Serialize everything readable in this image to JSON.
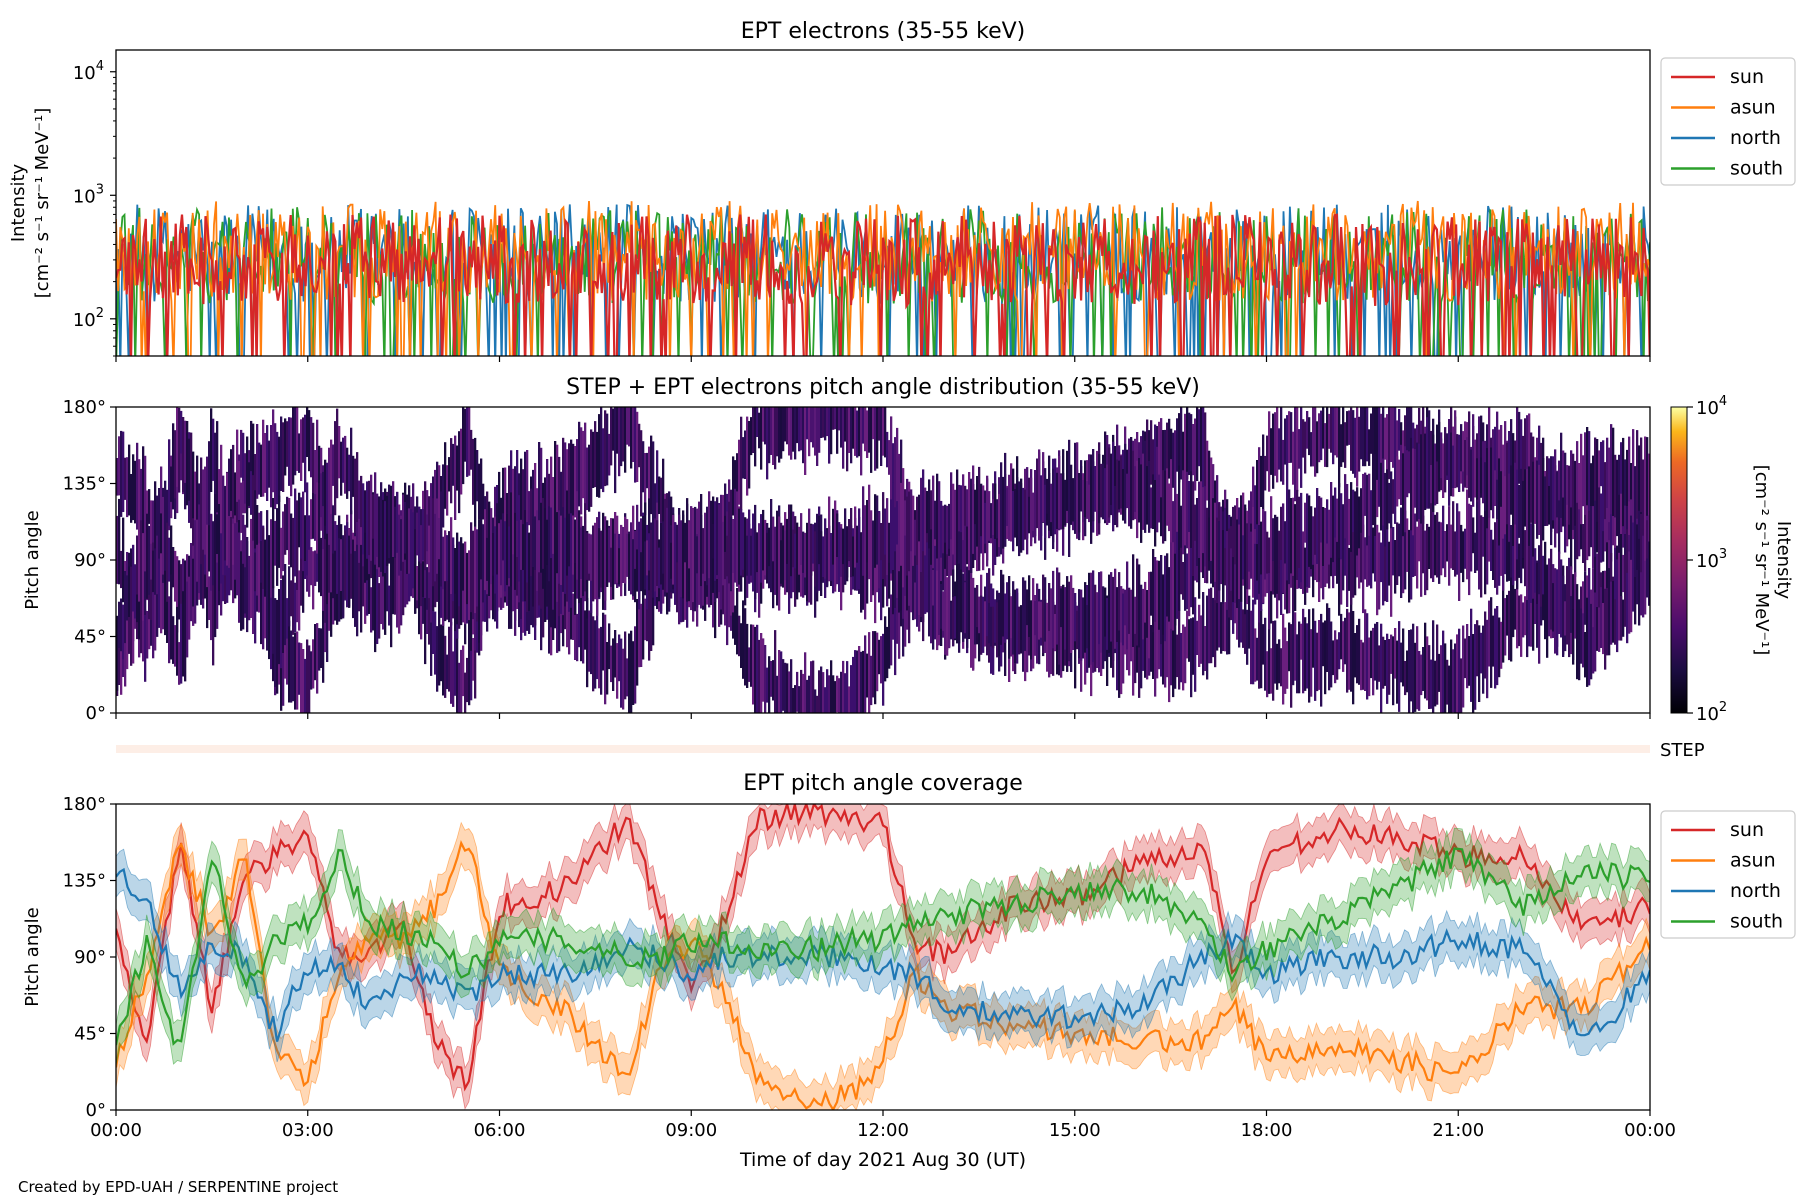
{
  "credit": "Created by EPD-UAH / SERPENTINE project",
  "xaxis": {
    "label": "Time of day 2021 Aug 30 (UT)",
    "ticks": [
      "00:00",
      "03:00",
      "06:00",
      "09:00",
      "12:00",
      "15:00",
      "18:00",
      "21:00",
      "00:00"
    ],
    "range_hours": [
      0,
      24
    ]
  },
  "colors": {
    "sun": "#d62728",
    "asun": "#ff7f0e",
    "north": "#1f77b4",
    "south": "#2ca02c",
    "step": "#fdeee6"
  },
  "chart_data": [
    {
      "type": "line",
      "title": "EPT electrons (35-55 keV)",
      "ylabel_line1": "Intensity",
      "ylabel_line2": "[cm⁻² s⁻¹ sr⁻¹ MeV⁻¹]",
      "yscale": "log",
      "ylim": [
        50,
        15000
      ],
      "yticks": [
        {
          "base": "10",
          "exp": "2",
          "value": 100
        },
        {
          "base": "10",
          "exp": "3",
          "value": 1000
        },
        {
          "base": "10",
          "exp": "4",
          "value": 10000
        }
      ],
      "legend": {
        "placement": "outside-right",
        "entries": [
          "sun",
          "asun",
          "north",
          "south"
        ]
      },
      "series": [
        {
          "name": "sun",
          "typical_range": [
            50,
            700
          ]
        },
        {
          "name": "asun",
          "typical_range": [
            50,
            900
          ]
        },
        {
          "name": "north",
          "typical_range": [
            50,
            850
          ]
        },
        {
          "name": "south",
          "typical_range": [
            50,
            800
          ]
        }
      ]
    },
    {
      "type": "heatmap",
      "title": "STEP + EPT electrons pitch angle distribution (35-55 keV)",
      "ylabel": "Pitch angle",
      "ylim": [
        0,
        180
      ],
      "yticks": [
        "0°",
        "45°",
        "90°",
        "135°",
        "180°"
      ],
      "colorbar": {
        "label_line1": "Intensity",
        "label_line2": "[cm⁻² s⁻¹ sr⁻¹ MeV⁻¹]",
        "scale": "log",
        "range": [
          100,
          10000
        ],
        "ticks": [
          {
            "base": "10",
            "exp": "2"
          },
          {
            "base": "10",
            "exp": "3"
          },
          {
            "base": "10",
            "exp": "4"
          }
        ]
      },
      "step_strip_label": "STEP"
    },
    {
      "type": "line",
      "title": "EPT pitch angle coverage",
      "ylabel": "Pitch angle",
      "ylim": [
        0,
        180
      ],
      "yticks": [
        "0°",
        "45°",
        "90°",
        "135°",
        "180°"
      ],
      "legend": {
        "placement": "outside-right",
        "entries": [
          "sun",
          "asun",
          "north",
          "south"
        ]
      },
      "series": [
        {
          "name": "sun",
          "x": [
            0,
            0.5,
            1,
            1.5,
            2,
            2.5,
            3,
            3.5,
            4,
            4.5,
            5,
            5.5,
            6,
            7,
            8,
            8.5,
            9,
            9.5,
            10,
            10.5,
            11,
            11.5,
            12,
            12.5,
            13,
            14,
            15,
            16,
            17,
            17.5,
            18,
            19,
            20,
            21,
            22,
            23,
            24
          ],
          "values": [
            100,
            40,
            160,
            60,
            135,
            150,
            160,
            90,
            95,
            110,
            40,
            15,
            120,
            130,
            170,
            120,
            70,
            110,
            170,
            175,
            175,
            170,
            170,
            100,
            90,
            120,
            125,
            145,
            155,
            80,
            150,
            165,
            160,
            150,
            150,
            105,
            120
          ]
        },
        {
          "name": "asun",
          "x": [
            0,
            0.5,
            1,
            1.5,
            2,
            2.5,
            3,
            3.5,
            4,
            4.5,
            5,
            5.5,
            6,
            7,
            8,
            8.5,
            9,
            9.5,
            10,
            10.5,
            11,
            11.5,
            12,
            12.5,
            13,
            14,
            15,
            16,
            17,
            17.5,
            18,
            19,
            20,
            21,
            22,
            23,
            24
          ],
          "values": [
            30,
            80,
            160,
            100,
            150,
            30,
            20,
            80,
            100,
            100,
            120,
            160,
            80,
            60,
            20,
            80,
            100,
            70,
            20,
            10,
            5,
            10,
            30,
            80,
            60,
            50,
            45,
            40,
            40,
            60,
            30,
            40,
            30,
            20,
            60,
            60,
            100
          ]
        },
        {
          "name": "north",
          "x": [
            0,
            0.5,
            1,
            1.5,
            2,
            2.5,
            3,
            3.5,
            4,
            4.5,
            5,
            5.5,
            6,
            7,
            8,
            8.5,
            9,
            9.5,
            10,
            10.5,
            11,
            11.5,
            12,
            12.5,
            13,
            14,
            15,
            16,
            17,
            17.5,
            18,
            19,
            20,
            21,
            22,
            23,
            24
          ],
          "values": [
            140,
            120,
            70,
            100,
            90,
            45,
            85,
            85,
            60,
            80,
            80,
            65,
            80,
            80,
            95,
            90,
            80,
            90,
            90,
            90,
            90,
            90,
            85,
            80,
            60,
            55,
            55,
            60,
            90,
            100,
            80,
            90,
            90,
            100,
            95,
            40,
            80
          ]
        },
        {
          "name": "south",
          "x": [
            0,
            0.5,
            1,
            1.5,
            2,
            2.5,
            3,
            3.5,
            4,
            4.5,
            5,
            5.5,
            6,
            7,
            8,
            8.5,
            9,
            9.5,
            10,
            10.5,
            11,
            11.5,
            12,
            12.5,
            13,
            14,
            15,
            16,
            17,
            17.5,
            18,
            19,
            20,
            21,
            22,
            23,
            24
          ],
          "values": [
            40,
            100,
            30,
            150,
            70,
            100,
            110,
            150,
            110,
            105,
            100,
            80,
            100,
            100,
            90,
            90,
            100,
            100,
            95,
            95,
            95,
            100,
            100,
            110,
            115,
            120,
            130,
            130,
            110,
            80,
            95,
            110,
            130,
            150,
            120,
            140,
            135
          ]
        }
      ]
    }
  ]
}
